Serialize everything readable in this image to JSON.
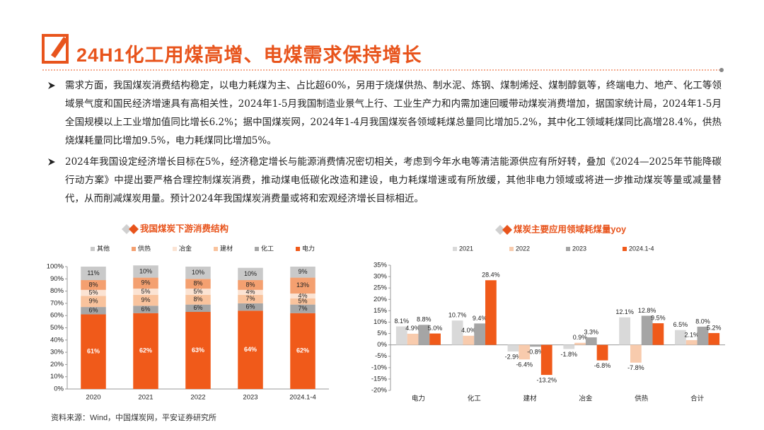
{
  "header": {
    "title": "24H1化工用煤高增、电煤需求保持增长"
  },
  "bullets": [
    "需求方面，我国煤炭消费结构稳定，以电力耗煤为主、占比超60%，另用于烧煤供热、制水泥、炼钢、煤制烯烃、煤制醇氨等，终端电力、地产、化工等领域景气度和国民经济增速具有高相关性，2024年1-5月我国制造业景气上行、工业生产力和内需加速回暖带动煤炭消费增加，据国家统计局，2024年1-5月全国规模以上工业增加值同比增长6.2%；据中国煤炭网，2024年1-4月我国煤炭各领域耗煤总量同比增加5.2%，其中化工领域耗煤同比高增28.4%，供热烧煤耗量同比增加9.5%，电力耗煤同比增加5%。",
    "2024年我国设定经济增长目标在5%，经济稳定增长与能源消费情况密切相关，考虑到今年水电等清洁能源供应有所好转，叠加《2024—2025年节能降碳行动方案》中提出要严格合理控制煤炭消费，推动煤电低碳化改造和建设，电力耗煤增速或有所放缓，其他非电力领域或将进一步推动煤炭等量或减量替代，从而削减煤炭用量。预计2024年我国煤炭消费量或将和宏观经济增长目标相近。"
  ],
  "source": "资料来源：Wind，中国煤炭网，平安证券研究所",
  "chart_data": [
    {
      "type": "bar",
      "stacked": true,
      "title": "我国煤炭下游消费结构",
      "categories": [
        "2020",
        "2021",
        "2022",
        "2023",
        "2024.1-4"
      ],
      "series": [
        {
          "name": "电力",
          "color": "#f05a1a",
          "values": [
            61,
            62,
            63,
            64,
            62
          ],
          "value_labels": [
            "61%",
            "62%",
            "63%",
            "64%",
            "62%"
          ]
        },
        {
          "name": "化工",
          "color": "#a6a6a6",
          "values": [
            6,
            6,
            6,
            6,
            7
          ],
          "value_labels": [
            "6%",
            "6%",
            "6%",
            "6%",
            "7%"
          ]
        },
        {
          "name": "建材",
          "color": "#f9c39d",
          "values": [
            9,
            9,
            8,
            7,
            5
          ],
          "value_labels": [
            "9%",
            "9%",
            "8%",
            "7%",
            "5%"
          ]
        },
        {
          "name": "冶金",
          "color": "#fbe3d3",
          "values": [
            5,
            5,
            5,
            4,
            4
          ],
          "value_labels": [
            "5%",
            "5%",
            "5%",
            "4%",
            "4%"
          ]
        },
        {
          "name": "供热",
          "color": "#f4a070",
          "values": [
            8,
            9,
            8,
            8,
            13
          ],
          "value_labels": [
            "8%",
            "9%",
            "8%",
            "8%",
            "13%"
          ]
        },
        {
          "name": "其他",
          "color": "#c9c9c9",
          "values": [
            11,
            10,
            10,
            10,
            9
          ],
          "value_labels": [
            "11%",
            "10%",
            "10%",
            "10%",
            "9%"
          ]
        }
      ],
      "legend_order": [
        5,
        4,
        3,
        2,
        1,
        0
      ],
      "ylim": [
        0,
        100
      ],
      "yticks": [
        {
          "value": 0,
          "label": "0%"
        },
        {
          "value": 10,
          "label": "10%"
        },
        {
          "value": 20,
          "label": "20%"
        },
        {
          "value": 30,
          "label": "30%"
        },
        {
          "value": 40,
          "label": "40%"
        },
        {
          "value": 50,
          "label": "50%"
        },
        {
          "value": 60,
          "label": "60%"
        },
        {
          "value": 70,
          "label": "70%"
        },
        {
          "value": 80,
          "label": "80%"
        },
        {
          "value": 90,
          "label": "90%"
        },
        {
          "value": 100,
          "label": "100%"
        }
      ],
      "grid": false
    },
    {
      "type": "bar",
      "stacked": false,
      "title": "煤炭主要应用领域耗煤量yoy",
      "categories": [
        "电力",
        "化工",
        "建材",
        "冶金",
        "供热",
        "合计"
      ],
      "series": [
        {
          "name": "2021",
          "color": "#d9d9d9",
          "values": [
            8.1,
            10.7,
            -2.9,
            -1.8,
            12.1,
            6.5
          ],
          "value_labels": [
            "8.1%",
            "10.7%",
            "-2.9%",
            "-1.8%",
            "12.1%",
            "6.5%"
          ]
        },
        {
          "name": "2022",
          "color": "#f8cbad",
          "values": [
            4.9,
            4.0,
            -6.4,
            0.9,
            -7.8,
            2.1
          ],
          "value_labels": [
            "4.9%",
            "4.0%",
            "-6.4%",
            "0.9%",
            "-7.8%",
            "2.1%"
          ]
        },
        {
          "name": "2023",
          "color": "#a5a5a5",
          "values": [
            8.8,
            9.4,
            -0.8,
            3.3,
            12.8,
            8.0
          ],
          "value_labels": [
            "8.8%",
            "9.4%",
            "-0.8%",
            "3.3%",
            "12.8%",
            "8.0%"
          ]
        },
        {
          "name": "2024.1-4",
          "color": "#f05a1a",
          "values": [
            5.0,
            28.4,
            -13.2,
            -6.8,
            9.5,
            5.2
          ],
          "value_labels": [
            "5.0%",
            "28.4%",
            "-13.2%",
            "-6.8%",
            "9.5%",
            "5.2%"
          ]
        }
      ],
      "legend_order": [
        0,
        1,
        2,
        3
      ],
      "ylim": [
        -20,
        35
      ],
      "yticks": [
        {
          "value": -20,
          "label": "-20%"
        },
        {
          "value": -15,
          "label": "-15%"
        },
        {
          "value": -10,
          "label": "-10%"
        },
        {
          "value": -5,
          "label": "-5%"
        },
        {
          "value": 0,
          "label": "0%"
        },
        {
          "value": 5,
          "label": "5%"
        },
        {
          "value": 10,
          "label": "10%"
        },
        {
          "value": 15,
          "label": "15%"
        },
        {
          "value": 20,
          "label": "20%"
        },
        {
          "value": 25,
          "label": "25%"
        },
        {
          "value": 30,
          "label": "30%"
        },
        {
          "value": 35,
          "label": "35%"
        }
      ],
      "grid": false
    }
  ]
}
